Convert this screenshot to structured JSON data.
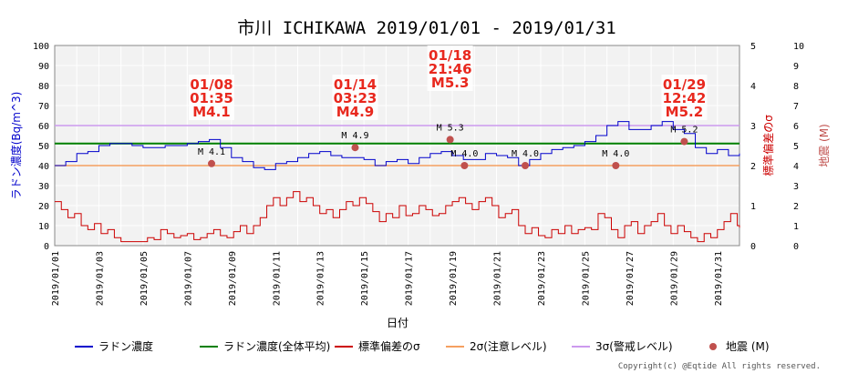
{
  "chart_data": {
    "type": "line",
    "title": "市川 ICHIKAWA 2019/01/01 - 2019/01/31",
    "xlabel": "日付",
    "ylabel_left": "ラドン濃度(Bq/m^3)",
    "ylabel_right1": "標準偏差のσ",
    "ylabel_right2": "地震 (M)",
    "ylim_left": [
      0,
      100
    ],
    "ylim_sigma": [
      0,
      5
    ],
    "ylim_mag": [
      0,
      10
    ],
    "yticks_left": [
      "0",
      "10",
      "20",
      "30",
      "40",
      "50",
      "60",
      "70",
      "80",
      "90",
      "100"
    ],
    "yticks_sigma": [
      "0",
      "1",
      "2",
      "3",
      "4",
      "5"
    ],
    "yticks_mag": [
      "0",
      "1",
      "2",
      "3",
      "4",
      "5",
      "6",
      "7",
      "8",
      "9",
      "10"
    ],
    "x_range": [
      "2019/01/01",
      "2019/02/01"
    ],
    "x_tick_labels": [
      "2019/01/01",
      "2019/01/03",
      "2019/01/05",
      "2019/01/07",
      "2019/01/09",
      "2019/01/11",
      "2019/01/13",
      "2019/01/15",
      "2019/01/17",
      "2019/01/19",
      "2019/01/21",
      "2019/01/23",
      "2019/01/25",
      "2019/01/27",
      "2019/01/29",
      "2019/01/31"
    ],
    "grid": true,
    "legend_position": "bottom",
    "series": [
      {
        "name": "ラドン濃度",
        "color": "#0000cc",
        "axis": "left",
        "points": [
          [
            0,
            40
          ],
          [
            0.5,
            42
          ],
          [
            1,
            46
          ],
          [
            1.5,
            47
          ],
          [
            2,
            50
          ],
          [
            2.5,
            51
          ],
          [
            3,
            51
          ],
          [
            3.5,
            50
          ],
          [
            4,
            49
          ],
          [
            4.5,
            49
          ],
          [
            5,
            50
          ],
          [
            5.5,
            50
          ],
          [
            6,
            51
          ],
          [
            6.5,
            52
          ],
          [
            7,
            53
          ],
          [
            7.5,
            49
          ],
          [
            8,
            44
          ],
          [
            8.5,
            42
          ],
          [
            9,
            39
          ],
          [
            9.5,
            38
          ],
          [
            10,
            41
          ],
          [
            10.5,
            42
          ],
          [
            11,
            44
          ],
          [
            11.5,
            46
          ],
          [
            12,
            47
          ],
          [
            12.5,
            45
          ],
          [
            13,
            44
          ],
          [
            13.5,
            44
          ],
          [
            14,
            43
          ],
          [
            14.5,
            40
          ],
          [
            15,
            42
          ],
          [
            15.5,
            43
          ],
          [
            16,
            41
          ],
          [
            16.5,
            44
          ],
          [
            17,
            46
          ],
          [
            17.5,
            47
          ],
          [
            18,
            45
          ],
          [
            18.5,
            43
          ],
          [
            19,
            43
          ],
          [
            19.5,
            46
          ],
          [
            20,
            45
          ],
          [
            20.5,
            44
          ],
          [
            21,
            40
          ],
          [
            21.5,
            43
          ],
          [
            22,
            46
          ],
          [
            22.5,
            48
          ],
          [
            23,
            49
          ],
          [
            23.5,
            50
          ],
          [
            24,
            52
          ],
          [
            24.5,
            55
          ],
          [
            25,
            60
          ],
          [
            25.5,
            62
          ],
          [
            26,
            58
          ],
          [
            26.5,
            58
          ],
          [
            27,
            60
          ],
          [
            27.5,
            62
          ],
          [
            28,
            58
          ],
          [
            28.5,
            56
          ],
          [
            29,
            49
          ],
          [
            29.5,
            46
          ],
          [
            30,
            48
          ],
          [
            30.5,
            45
          ],
          [
            31,
            46
          ]
        ]
      },
      {
        "name": "ラドン濃度(全体平均)",
        "color": "#008000",
        "axis": "left",
        "value": 51
      },
      {
        "name": "標準偏差のσ",
        "color": "#cc0000",
        "axis": "sigma",
        "points": [
          [
            0,
            1.1
          ],
          [
            0.3,
            0.9
          ],
          [
            0.6,
            0.7
          ],
          [
            0.9,
            0.8
          ],
          [
            1.2,
            0.5
          ],
          [
            1.5,
            0.4
          ],
          [
            1.8,
            0.55
          ],
          [
            2.1,
            0.3
          ],
          [
            2.4,
            0.4
          ],
          [
            2.7,
            0.2
          ],
          [
            3,
            0.1
          ],
          [
            3.3,
            0.1
          ],
          [
            3.6,
            0.1
          ],
          [
            3.9,
            0.1
          ],
          [
            4.2,
            0.2
          ],
          [
            4.5,
            0.15
          ],
          [
            4.8,
            0.4
          ],
          [
            5.1,
            0.3
          ],
          [
            5.4,
            0.2
          ],
          [
            5.7,
            0.25
          ],
          [
            6,
            0.3
          ],
          [
            6.3,
            0.15
          ],
          [
            6.6,
            0.2
          ],
          [
            6.9,
            0.3
          ],
          [
            7.2,
            0.4
          ],
          [
            7.5,
            0.25
          ],
          [
            7.8,
            0.2
          ],
          [
            8.1,
            0.35
          ],
          [
            8.4,
            0.5
          ],
          [
            8.7,
            0.3
          ],
          [
            9,
            0.5
          ],
          [
            9.3,
            0.7
          ],
          [
            9.6,
            1.0
          ],
          [
            9.9,
            1.2
          ],
          [
            10.2,
            1.0
          ],
          [
            10.5,
            1.2
          ],
          [
            10.8,
            1.35
          ],
          [
            11.1,
            1.1
          ],
          [
            11.4,
            1.2
          ],
          [
            11.7,
            1.0
          ],
          [
            12,
            0.8
          ],
          [
            12.3,
            0.9
          ],
          [
            12.6,
            0.7
          ],
          [
            12.9,
            0.9
          ],
          [
            13.2,
            1.1
          ],
          [
            13.5,
            1.0
          ],
          [
            13.8,
            1.2
          ],
          [
            14.1,
            1.05
          ],
          [
            14.4,
            0.85
          ],
          [
            14.7,
            0.6
          ],
          [
            15,
            0.8
          ],
          [
            15.3,
            0.7
          ],
          [
            15.6,
            1.0
          ],
          [
            15.9,
            0.75
          ],
          [
            16.2,
            0.8
          ],
          [
            16.5,
            1.0
          ],
          [
            16.8,
            0.9
          ],
          [
            17.1,
            0.75
          ],
          [
            17.4,
            0.8
          ],
          [
            17.7,
            1.0
          ],
          [
            18,
            1.1
          ],
          [
            18.3,
            1.2
          ],
          [
            18.6,
            1.05
          ],
          [
            18.9,
            0.9
          ],
          [
            19.2,
            1.1
          ],
          [
            19.5,
            1.2
          ],
          [
            19.8,
            1.0
          ],
          [
            20.1,
            0.7
          ],
          [
            20.4,
            0.8
          ],
          [
            20.7,
            0.9
          ],
          [
            21,
            0.5
          ],
          [
            21.3,
            0.3
          ],
          [
            21.6,
            0.45
          ],
          [
            21.9,
            0.25
          ],
          [
            22.2,
            0.2
          ],
          [
            22.5,
            0.4
          ],
          [
            22.8,
            0.3
          ],
          [
            23.1,
            0.5
          ],
          [
            23.4,
            0.3
          ],
          [
            23.7,
            0.4
          ],
          [
            24,
            0.45
          ],
          [
            24.3,
            0.4
          ],
          [
            24.6,
            0.8
          ],
          [
            24.9,
            0.7
          ],
          [
            25.2,
            0.4
          ],
          [
            25.5,
            0.2
          ],
          [
            25.8,
            0.5
          ],
          [
            26.1,
            0.6
          ],
          [
            26.4,
            0.3
          ],
          [
            26.7,
            0.5
          ],
          [
            27,
            0.6
          ],
          [
            27.3,
            0.8
          ],
          [
            27.6,
            0.5
          ],
          [
            27.9,
            0.3
          ],
          [
            28.2,
            0.5
          ],
          [
            28.5,
            0.35
          ],
          [
            28.8,
            0.2
          ],
          [
            29.1,
            0.1
          ],
          [
            29.4,
            0.3
          ],
          [
            29.7,
            0.2
          ],
          [
            30,
            0.4
          ],
          [
            30.3,
            0.6
          ],
          [
            30.6,
            0.8
          ],
          [
            30.9,
            0.5
          ],
          [
            31,
            0.45
          ]
        ]
      },
      {
        "name": "2σ(注意レベル)",
        "color": "#f5a060",
        "axis": "left",
        "value": 40
      },
      {
        "name": "3σ(警戒レベル)",
        "color": "#cc99ee",
        "axis": "left",
        "value": 60
      },
      {
        "name": "地震 (M)",
        "color": "#c0504d",
        "axis": "mag",
        "marker": "circle",
        "points": [
          {
            "x": 7.1,
            "m": 4.1,
            "label": "M 4.1"
          },
          {
            "x": 13.6,
            "m": 4.9,
            "label": "M 4.9"
          },
          {
            "x": 17.9,
            "m": 5.3,
            "label": "M 5.3"
          },
          {
            "x": 18.55,
            "m": 4.0,
            "label": "M 4.0"
          },
          {
            "x": 21.3,
            "m": 4.0,
            "label": "M 4.0"
          },
          {
            "x": 25.4,
            "m": 4.0,
            "label": "M 4.0"
          },
          {
            "x": 28.5,
            "m": 5.2,
            "label": "M 5.2"
          }
        ]
      }
    ],
    "annotations": [
      {
        "x": 7.1,
        "lines": [
          "01/08",
          "01:35",
          "M4.1"
        ]
      },
      {
        "x": 13.6,
        "lines": [
          "01/14",
          "03:23",
          "M4.9"
        ]
      },
      {
        "x": 17.9,
        "lines": [
          "01/18",
          "21:46",
          "M5.3"
        ]
      },
      {
        "x": 28.5,
        "lines": [
          "01/29",
          "12:42",
          "M5.2"
        ]
      }
    ],
    "copyright": "Copyright(c) @Eqtide All rights reserved."
  }
}
